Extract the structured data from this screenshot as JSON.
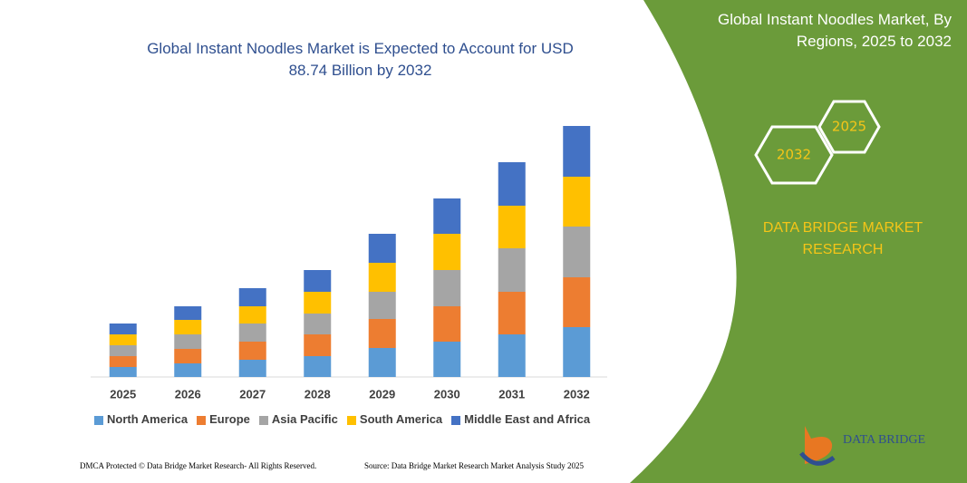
{
  "chart_data": {
    "type": "stacked-bar",
    "title": "Global Instant Noodles Market is Expected to Account for USD 88.74 Billion by 2032",
    "categories": [
      "2025",
      "2026",
      "2027",
      "2028",
      "2029",
      "2030",
      "2031",
      "2032"
    ],
    "series": [
      {
        "name": "North America",
        "color": "#5b9bd5",
        "values": [
          11,
          15,
          19,
          23,
          32,
          39,
          47,
          55
        ]
      },
      {
        "name": "Europe",
        "color": "#ed7d31",
        "values": [
          12,
          16,
          20,
          24,
          32,
          39,
          47,
          55
        ]
      },
      {
        "name": "Asia Pacific",
        "color": "#a5a5a5",
        "values": [
          12,
          16,
          20,
          23,
          30,
          40,
          48,
          56
        ]
      },
      {
        "name": "South America",
        "color": "#ffc000",
        "values": [
          12,
          16,
          19,
          24,
          32,
          40,
          47,
          55
        ]
      },
      {
        "name": "Middle East and Africa",
        "color": "#4472c4",
        "values": [
          12,
          15,
          20,
          24,
          32,
          39,
          48,
          56
        ]
      }
    ],
    "legend": "bottom"
  },
  "panel": {
    "title": "Global Instant Noodles Market, By Regions, 2025 to 2032",
    "hex_labels": [
      "2025",
      "2032"
    ],
    "brand": "DATA BRIDGE MARKET RESEARCH",
    "logo": "DATA BRIDGE"
  },
  "footer": {
    "left": "DMCA Protected © Data Bridge Market Research- All Rights Reserved.",
    "right": "Source: Data Bridge Market Research Market Analysis Study 2025"
  }
}
